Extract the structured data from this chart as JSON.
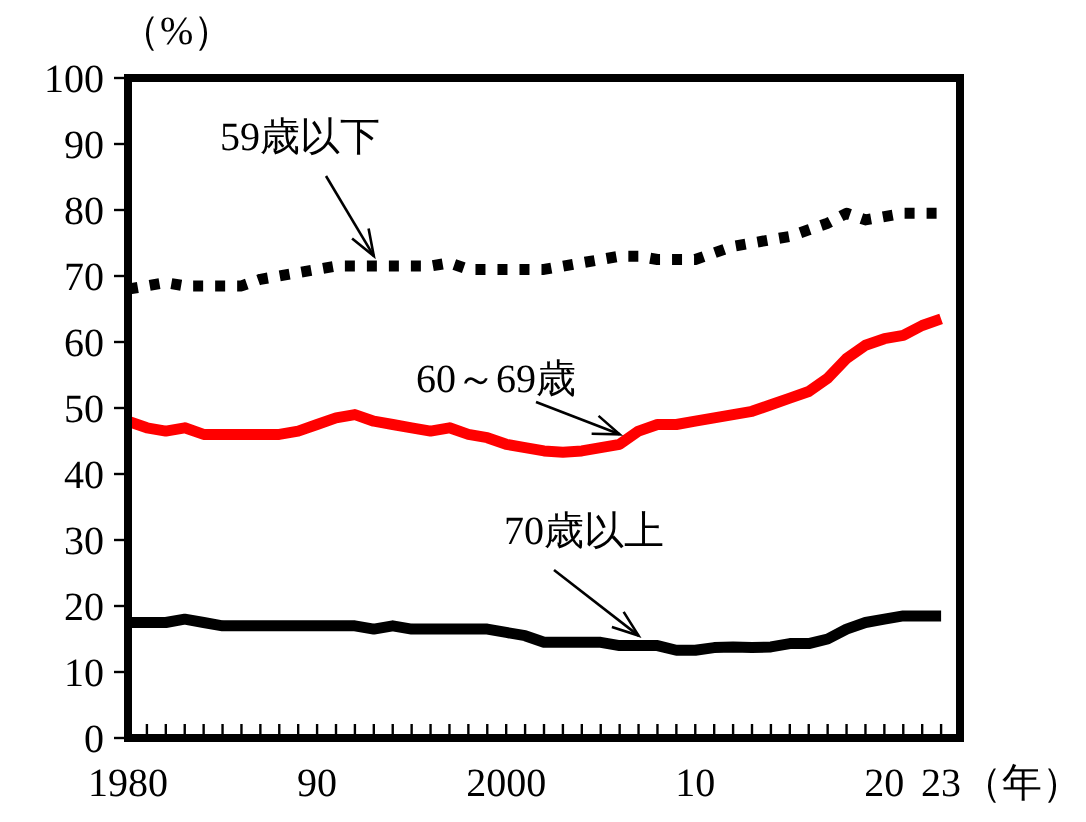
{
  "chart_data": {
    "type": "line",
    "xlabel": "（年）",
    "ylabel": "（%）",
    "legend": false,
    "grid": false,
    "x": [
      1980,
      1981,
      1982,
      1983,
      1984,
      1985,
      1986,
      1987,
      1988,
      1989,
      1990,
      1991,
      1992,
      1993,
      1994,
      1995,
      1996,
      1997,
      1998,
      1999,
      2000,
      2001,
      2002,
      2003,
      2004,
      2005,
      2006,
      2007,
      2008,
      2009,
      2010,
      2011,
      2012,
      2013,
      2014,
      2015,
      2016,
      2017,
      2018,
      2019,
      2020,
      2021,
      2022,
      2023
    ],
    "xlim": [
      1980,
      2024
    ],
    "xticks": [
      {
        "value": 1980,
        "label": "1980"
      },
      {
        "value": 1981,
        "label": null
      },
      {
        "value": 1982,
        "label": null
      },
      {
        "value": 1983,
        "label": null
      },
      {
        "value": 1984,
        "label": null
      },
      {
        "value": 1985,
        "label": null
      },
      {
        "value": 1986,
        "label": null
      },
      {
        "value": 1987,
        "label": null
      },
      {
        "value": 1988,
        "label": null
      },
      {
        "value": 1989,
        "label": null
      },
      {
        "value": 1990,
        "label": "90"
      },
      {
        "value": 1991,
        "label": null
      },
      {
        "value": 1992,
        "label": null
      },
      {
        "value": 1993,
        "label": null
      },
      {
        "value": 1994,
        "label": null
      },
      {
        "value": 1995,
        "label": null
      },
      {
        "value": 1996,
        "label": null
      },
      {
        "value": 1997,
        "label": null
      },
      {
        "value": 1998,
        "label": null
      },
      {
        "value": 1999,
        "label": null
      },
      {
        "value": 2000,
        "label": "2000"
      },
      {
        "value": 2001,
        "label": null
      },
      {
        "value": 2002,
        "label": null
      },
      {
        "value": 2003,
        "label": null
      },
      {
        "value": 2004,
        "label": null
      },
      {
        "value": 2005,
        "label": null
      },
      {
        "value": 2006,
        "label": null
      },
      {
        "value": 2007,
        "label": null
      },
      {
        "value": 2008,
        "label": null
      },
      {
        "value": 2009,
        "label": null
      },
      {
        "value": 2010,
        "label": "10"
      },
      {
        "value": 2011,
        "label": null
      },
      {
        "value": 2012,
        "label": null
      },
      {
        "value": 2013,
        "label": null
      },
      {
        "value": 2014,
        "label": null
      },
      {
        "value": 2015,
        "label": null
      },
      {
        "value": 2016,
        "label": null
      },
      {
        "value": 2017,
        "label": null
      },
      {
        "value": 2018,
        "label": null
      },
      {
        "value": 2019,
        "label": null
      },
      {
        "value": 2020,
        "label": "20"
      },
      {
        "value": 2021,
        "label": null
      },
      {
        "value": 2022,
        "label": null
      },
      {
        "value": 2023,
        "label": "23"
      }
    ],
    "ylim": [
      0,
      100
    ],
    "yticks": [
      0,
      10,
      20,
      30,
      40,
      50,
      60,
      70,
      80,
      90,
      100
    ],
    "series": [
      {
        "name": "59歳以下",
        "color": "#000000",
        "line_style": "dotted",
        "values": [
          68,
          68.5,
          69,
          68.5,
          68.5,
          68.5,
          68.5,
          69.5,
          70,
          70.5,
          71,
          71.5,
          71.5,
          71.5,
          71.5,
          71.5,
          71.5,
          72,
          71,
          71,
          71,
          71,
          71,
          71.5,
          72,
          72.5,
          73,
          73,
          72.5,
          72.5,
          72.5,
          73.5,
          74.5,
          75,
          75.5,
          76,
          77,
          78,
          79.5,
          78.5,
          79,
          79.5,
          79.5,
          79.5
        ]
      },
      {
        "name": "60～69歳",
        "color": "#ff0000",
        "line_style": "solid",
        "values": [
          48,
          47,
          46.5,
          47,
          46,
          46,
          46,
          46,
          46,
          46.5,
          47.5,
          48.5,
          49,
          48,
          47.5,
          47,
          46.5,
          47,
          46,
          45.5,
          44.5,
          44,
          43.5,
          43.3,
          43.5,
          44,
          44.5,
          46.5,
          47.5,
          47.5,
          48,
          48.5,
          49,
          49.5,
          50.5,
          51.5,
          52.5,
          54.5,
          57.5,
          59.5,
          60.5,
          61,
          62.5,
          63.5
        ]
      },
      {
        "name": "70歳以上",
        "color": "#000000",
        "line_style": "solid",
        "values": [
          17.5,
          17.5,
          17.5,
          18,
          17.5,
          17,
          17,
          17,
          17,
          17,
          17,
          17,
          17,
          16.5,
          17,
          16.5,
          16.5,
          16.5,
          16.5,
          16.5,
          16,
          15.5,
          14.5,
          14.5,
          14.5,
          14.5,
          14,
          14,
          14,
          13.3,
          13.3,
          13.7,
          13.8,
          13.7,
          13.8,
          14.3,
          14.3,
          15,
          16.5,
          17.5,
          18,
          18.5,
          18.5,
          18.5
        ]
      }
    ]
  }
}
